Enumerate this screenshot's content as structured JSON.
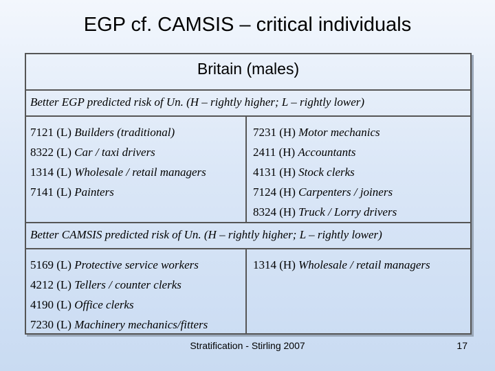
{
  "title": "EGP cf. CAMSIS – critical individuals",
  "table": {
    "header": "Britain (males)",
    "section1": {
      "subtitle": "Better EGP predicted risk of Un. (H – rightly higher; L – rightly lower)",
      "left": [
        {
          "code": "7121 (L) ",
          "desc": "Builders (traditional)"
        },
        {
          "code": "8322 (L) ",
          "desc": "Car / taxi drivers"
        },
        {
          "code": "1314 (L) ",
          "desc": "Wholesale / retail managers"
        },
        {
          "code": "7141 (L) ",
          "desc": "Painters"
        }
      ],
      "right": [
        {
          "code": "7231 (H) ",
          "desc": "Motor mechanics"
        },
        {
          "code": "2411 (H) ",
          "desc": "Accountants"
        },
        {
          "code": "4131 (H) ",
          "desc": "Stock clerks"
        },
        {
          "code": "7124 (H) ",
          "desc": "Carpenters / joiners"
        },
        {
          "code": "8324 (H) ",
          "desc": "Truck / Lorry drivers"
        }
      ]
    },
    "section2": {
      "subtitle": "Better CAMSIS predicted risk of Un. (H – rightly higher; L – rightly lower)",
      "left": [
        {
          "code": "5169 (L) ",
          "desc": "Protective service workers"
        },
        {
          "code": "4212 (L) ",
          "desc": "Tellers / counter clerks"
        },
        {
          "code": "4190 (L) ",
          "desc": "Office clerks"
        },
        {
          "code": "7230 (L) ",
          "desc": "Machinery mechanics/fitters"
        }
      ],
      "right": [
        {
          "code": "1314 (H) ",
          "desc": "Wholesale / retail managers"
        }
      ]
    }
  },
  "footer": "Stratification - Stirling 2007",
  "page_number": "17"
}
